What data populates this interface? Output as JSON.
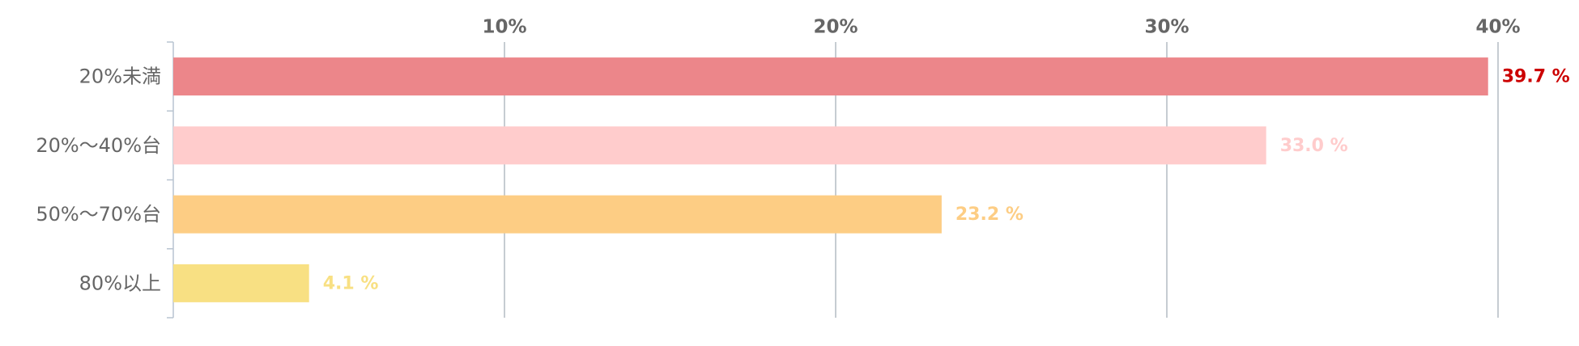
{
  "chart_data": {
    "type": "bar",
    "orientation": "horizontal",
    "categories": [
      "20%未満",
      "20%〜40%台",
      "50%〜70%台",
      "80%以上"
    ],
    "values": [
      39.7,
      33.0,
      23.2,
      4.1
    ],
    "value_labels": [
      "39.7 %",
      "33.0 %",
      "23.2 %",
      "4.1 %"
    ],
    "colors": [
      "#ec868a",
      "#ffcccc",
      "#fdcd84",
      "#f8e083"
    ],
    "value_label_colors": [
      "#cc0000",
      "#ffcccc",
      "#fdcd84",
      "#f8e083"
    ],
    "xlim": [
      0,
      40
    ],
    "xticks": [
      {
        "value": 10,
        "label": "10%"
      },
      {
        "value": 20,
        "label": "20%"
      },
      {
        "value": 30,
        "label": "30%"
      },
      {
        "value": 40,
        "label": "40%"
      }
    ],
    "grid": true
  }
}
